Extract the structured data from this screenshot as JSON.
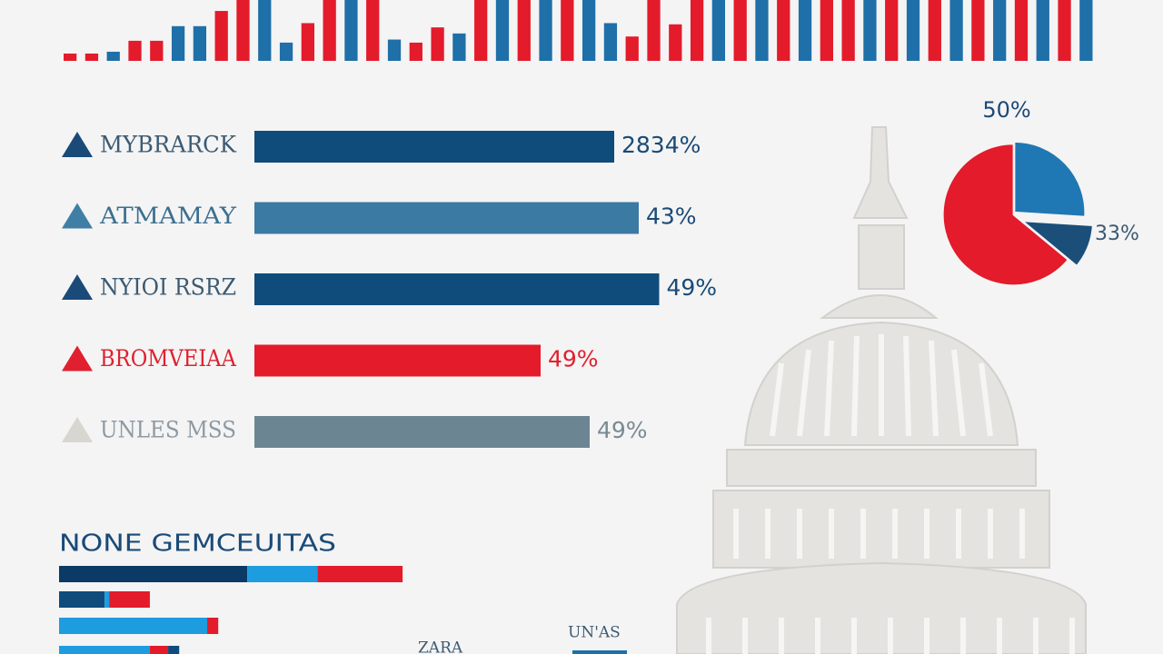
{
  "chart_data": [
    {
      "type": "bar",
      "values": [
        12,
        12,
        15,
        33,
        33,
        57,
        57,
        82,
        100,
        100,
        30,
        62,
        100,
        100,
        100,
        35,
        30,
        55,
        45,
        100,
        100,
        100,
        100,
        100,
        100,
        62,
        40,
        100,
        60,
        100,
        100,
        100,
        100,
        100,
        100,
        100,
        100,
        100,
        100,
        100,
        100,
        100,
        100,
        100,
        100,
        100,
        100,
        100
      ],
      "colors": [
        "#e31b2b",
        "#e31b2b",
        "#1f6fa8",
        "#e31b2b",
        "#e31b2b",
        "#1f6fa8",
        "#1f6fa8",
        "#e31b2b",
        "#e31b2b",
        "#1f6fa8",
        "#1f6fa8",
        "#e31b2b",
        "#e31b2b",
        "#1f6fa8",
        "#e31b2b",
        "#1f6fa8",
        "#e31b2b",
        "#e31b2b",
        "#1f6fa8",
        "#e31b2b",
        "#1f6fa8",
        "#e31b2b",
        "#1f6fa8",
        "#e31b2b",
        "#1f6fa8",
        "#1f6fa8",
        "#e31b2b",
        "#e31b2b",
        "#e31b2b",
        "#e31b2b",
        "#1f6fa8",
        "#e31b2b",
        "#1f6fa8",
        "#e31b2b",
        "#1f6fa8",
        "#e31b2b",
        "#e31b2b",
        "#1f6fa8",
        "#e31b2b",
        "#1f6fa8",
        "#e31b2b",
        "#1f6fa8",
        "#e31b2b",
        "#1f6fa8",
        "#e31b2b",
        "#1f6fa8",
        "#e31b2b",
        "#1f6fa8"
      ],
      "ylim": [
        0,
        100
      ]
    },
    {
      "type": "hbar",
      "categories": [
        "MYBRARCK",
        "ATMAMAY",
        "NYIOI RSRZ",
        "BROMVEIAA",
        "UNLES MSS"
      ],
      "values": [
        88,
        94,
        99,
        70,
        82
      ],
      "colors": [
        "#0f4c7c",
        "#3a7aa3",
        "#0f4c7c",
        "#e31b2b",
        "#6b8593"
      ],
      "annotations": [
        "2834%",
        "43%",
        "49%",
        "49%",
        "49%"
      ],
      "xlim": [
        0,
        100
      ]
    },
    {
      "type": "pie",
      "values": [
        26,
        10,
        64
      ],
      "colors": [
        "#1f78b4",
        "#1b4f7a",
        "#e31b2b"
      ],
      "annotations": [
        "50%",
        "33%"
      ]
    },
    {
      "type": "stacked",
      "title": "NONE GEMCEUITAS",
      "rows": [
        [
          {
            "value": 54.5,
            "color": "#0b3a66"
          },
          {
            "value": 20.3,
            "color": "#1e9ce0"
          },
          {
            "value": 24.7,
            "color": "#e31b2b"
          }
        ],
        [
          {
            "value": 13.2,
            "color": "#0f4c7c"
          },
          {
            "value": 1.3,
            "color": "#1e9ce0"
          },
          {
            "value": 11.8,
            "color": "#e31b2b"
          }
        ],
        [
          {
            "value": 42.9,
            "color": "#1e9ce0"
          },
          {
            "value": 3.2,
            "color": "#e31b2b"
          }
        ],
        [
          {
            "value": 26.3,
            "color": "#1e9ce0"
          },
          {
            "value": 5.3,
            "color": "#e31b2b"
          },
          {
            "value": 3.2,
            "color": "#0f4c7c"
          }
        ]
      ],
      "xlim": [
        0,
        100
      ],
      "annotations": [
        "UN'AS",
        "ZARA"
      ]
    }
  ]
}
